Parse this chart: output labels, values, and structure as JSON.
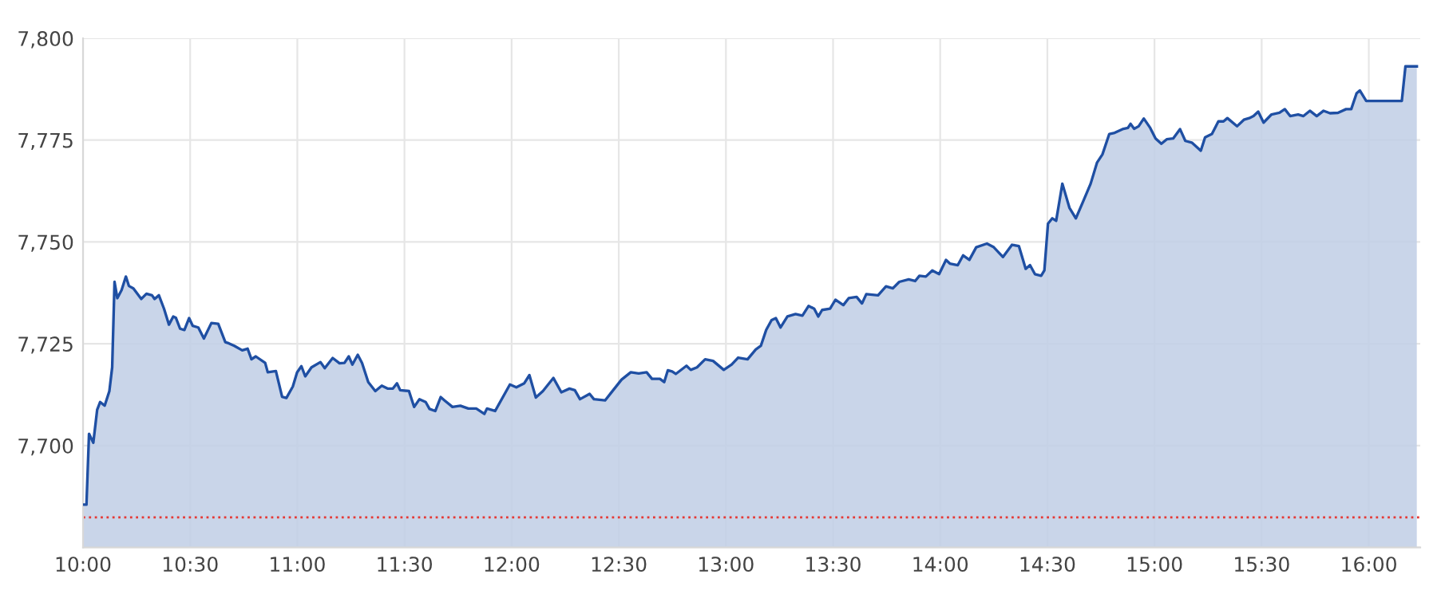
{
  "chart_data": {
    "type": "area",
    "xlim": [
      10,
      16.24
    ],
    "ylim": [
      7675,
      7800
    ],
    "xticks": [
      {
        "value": 10,
        "label": "10:00"
      },
      {
        "value": 10.5,
        "label": "10:30"
      },
      {
        "value": 11,
        "label": "11:00"
      },
      {
        "value": 11.5,
        "label": "11:30"
      },
      {
        "value": 12,
        "label": "12:00"
      },
      {
        "value": 12.5,
        "label": "12:30"
      },
      {
        "value": 13,
        "label": "13:00"
      },
      {
        "value": 13.5,
        "label": "13:30"
      },
      {
        "value": 14,
        "label": "14:00"
      },
      {
        "value": 14.5,
        "label": "14:30"
      },
      {
        "value": 15,
        "label": "15:00"
      },
      {
        "value": 15.5,
        "label": "15:30"
      },
      {
        "value": 16,
        "label": "16:00"
      }
    ],
    "yticks": [
      {
        "value": 7675,
        "label": null
      },
      {
        "value": 7700,
        "label": "7,700"
      },
      {
        "value": 7725,
        "label": "7,725"
      },
      {
        "value": 7750,
        "label": "7,750"
      },
      {
        "value": 7775,
        "label": "7,775"
      },
      {
        "value": 7800,
        "label": "7,800"
      }
    ],
    "grid": true,
    "ref_lines": [
      {
        "axis": "y",
        "value": 7682.4,
        "color": "#e53935",
        "line_style": "dotted"
      }
    ],
    "series": [
      {
        "color": "#1f4fa3",
        "x": [
          10.0,
          10.016,
          10.028,
          10.048,
          10.066,
          10.08,
          10.101,
          10.123,
          10.136,
          10.147,
          10.16,
          10.18,
          10.2,
          10.214,
          10.235,
          10.272,
          10.296,
          10.322,
          10.334,
          10.354,
          10.378,
          10.401,
          10.421,
          10.433,
          10.453,
          10.473,
          10.495,
          10.512,
          10.538,
          10.564,
          10.599,
          10.631,
          10.664,
          10.681,
          10.706,
          10.743,
          10.768,
          10.786,
          10.806,
          10.85,
          10.862,
          10.9,
          10.929,
          10.949,
          10.979,
          10.999,
          11.019,
          11.037,
          11.066,
          11.108,
          11.128,
          11.165,
          11.197,
          11.22,
          11.24,
          11.257,
          11.282,
          11.302,
          11.331,
          11.364,
          11.394,
          11.421,
          11.446,
          11.465,
          11.48,
          11.521,
          11.545,
          11.57,
          11.599,
          11.617,
          11.644,
          11.669,
          11.687,
          11.724,
          11.761,
          11.798,
          11.835,
          11.873,
          11.885,
          11.923,
          11.992,
          12.022,
          12.059,
          12.083,
          12.113,
          12.146,
          12.195,
          12.232,
          12.27,
          12.295,
          12.319,
          12.364,
          12.384,
          12.436,
          12.513,
          12.556,
          12.593,
          12.63,
          12.655,
          12.692,
          12.712,
          12.729,
          12.749,
          12.766,
          12.816,
          12.836,
          12.865,
          12.903,
          12.94,
          12.99,
          13.027,
          13.057,
          13.101,
          13.139,
          13.163,
          13.188,
          13.213,
          13.233,
          13.255,
          13.287,
          13.325,
          13.357,
          13.386,
          13.412,
          13.431,
          13.449,
          13.486,
          13.511,
          13.548,
          13.573,
          13.61,
          13.635,
          13.655,
          13.71,
          13.747,
          13.779,
          13.809,
          13.853,
          13.883,
          13.903,
          13.933,
          13.963,
          13.995,
          14.027,
          14.045,
          14.082,
          14.107,
          14.136,
          14.168,
          14.218,
          14.25,
          14.293,
          14.335,
          14.367,
          14.399,
          14.419,
          14.442,
          14.471,
          14.486,
          14.503,
          14.523,
          14.541,
          14.57,
          14.603,
          14.633,
          14.665,
          14.702,
          14.732,
          14.757,
          14.789,
          14.814,
          14.851,
          14.876,
          14.888,
          14.905,
          14.926,
          14.95,
          14.98,
          15.005,
          15.032,
          15.057,
          15.087,
          15.119,
          15.144,
          15.174,
          15.216,
          15.236,
          15.268,
          15.298,
          15.322,
          15.34,
          15.385,
          15.417,
          15.442,
          15.462,
          15.484,
          15.509,
          15.546,
          15.583,
          15.608,
          15.633,
          15.67,
          15.695,
          15.725,
          15.757,
          15.789,
          15.819,
          15.856,
          15.894,
          15.918,
          15.943,
          15.958,
          15.988,
          16.154,
          16.171,
          16.224
        ],
        "values": [
          7685.5,
          7685.5,
          7702.9,
          7700.7,
          7708.8,
          7710.7,
          7709.8,
          7713.4,
          7719.2,
          7740.2,
          7736.2,
          7738.2,
          7741.5,
          7739.2,
          7738.6,
          7736.0,
          7737.3,
          7736.9,
          7736.0,
          7736.9,
          7733.6,
          7729.7,
          7731.7,
          7731.4,
          7728.7,
          7728.4,
          7731.3,
          7729.4,
          7729.0,
          7726.3,
          7730.1,
          7729.9,
          7725.4,
          7725.1,
          7724.5,
          7723.4,
          7723.8,
          7721.2,
          7721.9,
          7720.3,
          7718.0,
          7718.3,
          7712.0,
          7711.7,
          7714.5,
          7718.0,
          7719.5,
          7717.0,
          7719.2,
          7720.5,
          7719.0,
          7721.5,
          7720.2,
          7720.3,
          7721.9,
          7719.9,
          7722.3,
          7720.3,
          7715.6,
          7713.4,
          7714.7,
          7714.0,
          7714.0,
          7715.3,
          7713.6,
          7713.4,
          7709.5,
          7711.4,
          7710.7,
          7709.0,
          7708.5,
          7711.9,
          7711.1,
          7709.5,
          7709.8,
          7709.1,
          7709.1,
          7707.8,
          7709.1,
          7708.5,
          7715.0,
          7714.3,
          7715.3,
          7717.3,
          7711.8,
          7713.4,
          7716.6,
          7713.1,
          7714.0,
          7713.6,
          7711.4,
          7712.7,
          7711.4,
          7711.1,
          7716.2,
          7718.0,
          7717.7,
          7718.0,
          7716.4,
          7716.4,
          7715.6,
          7718.5,
          7718.2,
          7717.6,
          7719.6,
          7718.6,
          7719.2,
          7721.2,
          7720.8,
          7718.6,
          7719.9,
          7721.6,
          7721.2,
          7723.6,
          7724.5,
          7728.4,
          7730.8,
          7731.3,
          7729.0,
          7731.7,
          7732.3,
          7731.9,
          7734.3,
          7733.6,
          7731.7,
          7733.3,
          7733.6,
          7735.8,
          7734.5,
          7736.2,
          7736.5,
          7734.9,
          7737.2,
          7736.9,
          7739.1,
          7738.6,
          7740.2,
          7740.8,
          7740.4,
          7741.7,
          7741.5,
          7743.0,
          7742.1,
          7745.6,
          7744.7,
          7744.3,
          7746.7,
          7745.6,
          7748.7,
          7749.6,
          7748.7,
          7746.3,
          7749.3,
          7749.0,
          7743.4,
          7744.3,
          7742.1,
          7741.7,
          7743.0,
          7754.5,
          7755.8,
          7755.2,
          7764.3,
          7758.4,
          7755.8,
          7759.7,
          7764.3,
          7769.5,
          7771.5,
          7776.5,
          7776.8,
          7777.7,
          7778.0,
          7779.0,
          7777.8,
          7778.4,
          7780.3,
          7778.0,
          7775.4,
          7774.1,
          7775.2,
          7775.4,
          7777.7,
          7774.8,
          7774.4,
          7772.4,
          7775.7,
          7776.5,
          7779.6,
          7779.6,
          7780.4,
          7778.4,
          7780.0,
          7780.4,
          7780.9,
          7782.0,
          7779.3,
          7781.3,
          7781.7,
          7782.6,
          7780.9,
          7781.3,
          7780.9,
          7782.2,
          7780.9,
          7782.2,
          7781.6,
          7781.7,
          7782.6,
          7782.6,
          7786.5,
          7787.2,
          7784.6,
          7784.6,
          7793.1,
          7793.1
        ]
      }
    ]
  }
}
